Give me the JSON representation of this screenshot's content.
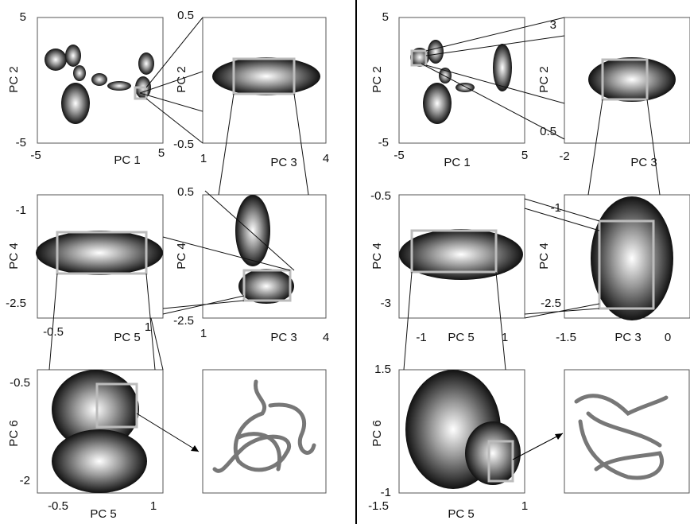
{
  "panels": [
    {
      "x_label": "PC 1",
      "y_label": "PC 2",
      "x_ticks": [
        "-5",
        "5"
      ],
      "y_ticks": [
        "5",
        "-5"
      ]
    },
    {
      "x_label": "PC 3",
      "y_label": "PC 2",
      "x_ticks": [
        "1",
        "4"
      ],
      "y_ticks": [
        "0.5",
        "-0.5"
      ]
    },
    {
      "x_label": "PC 5",
      "y_label": "PC 4",
      "x_ticks": [
        "-0.5",
        "1"
      ],
      "y_ticks": [
        "-1",
        "-2.5"
      ]
    },
    {
      "x_label": "PC 3",
      "y_label": "PC 4",
      "x_ticks": [
        "1",
        "4"
      ],
      "y_ticks": [
        "0.5",
        "-2.5"
      ]
    },
    {
      "x_label": "PC 5",
      "y_label": "PC 6",
      "x_ticks": [
        "-0.5",
        "1"
      ],
      "y_ticks": [
        "-0.5",
        "-2"
      ]
    },
    {
      "x_label": "PC 1",
      "y_label": "PC 2",
      "x_ticks": [
        "-5",
        "5"
      ],
      "y_ticks": [
        "5",
        "-5"
      ]
    },
    {
      "x_label": "PC 3",
      "y_label": "PC 2",
      "x_ticks": [
        "-2"
      ],
      "y_ticks": [
        "3",
        "0.5"
      ]
    },
    {
      "x_label": "PC 5",
      "y_label": "PC 4",
      "x_ticks": [
        "-1",
        "1"
      ],
      "y_ticks": [
        "-0.5",
        "-3"
      ]
    },
    {
      "x_label": "PC 3",
      "y_label": "PC 4",
      "x_ticks": [
        "-1.5",
        "0"
      ],
      "y_ticks": [
        "-1",
        "-2.5"
      ]
    },
    {
      "x_label": "PC 5",
      "y_label": "PC 6",
      "x_ticks": [
        "-1.5",
        "1"
      ],
      "y_ticks": [
        "1.5",
        "-1"
      ]
    }
  ]
}
